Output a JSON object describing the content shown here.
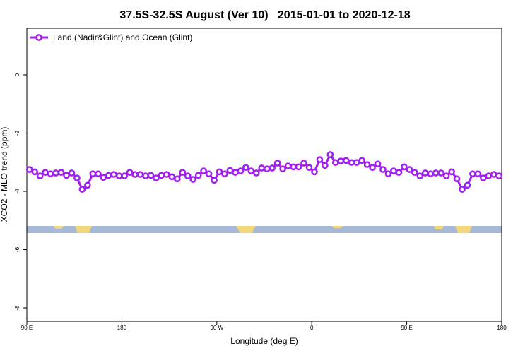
{
  "chart_data": {
    "type": "line",
    "title": "37.5S-32.5S August (Ver 10)   2015-01-01 to 2020-12-18",
    "x_label": "Longitude (deg E)",
    "y_label": "XCO2 - MLO trend (ppm)",
    "xlim": [
      90,
      540
    ],
    "ylim": [
      -8.46,
      1.6
    ],
    "xticks": [
      {
        "value": 90,
        "label": "90 E"
      },
      180,
      {
        "value": 270,
        "label": "90 W"
      },
      {
        "value": 360,
        "label": "0"
      },
      {
        "value": 450,
        "label": "90 E"
      },
      {
        "value": 540,
        "label": "180"
      }
    ],
    "yticks": [
      0,
      -2,
      -4,
      -6,
      -8
    ],
    "legend": "top-left",
    "x": [
      92.5,
      97.5,
      102.5,
      107.5,
      112.5,
      117.5,
      122.5,
      127.5,
      132.5,
      137.5,
      142.5,
      147.5,
      152.5,
      157.5,
      162.5,
      167.5,
      172.5,
      177.5,
      182.5,
      187.5,
      192.5,
      197.5,
      202.5,
      207.5,
      212.5,
      217.5,
      222.5,
      227.5,
      232.5,
      237.5,
      242.5,
      247.5,
      252.5,
      257.5,
      262.5,
      267.5,
      272.5,
      277.5,
      282.5,
      287.5,
      292.5,
      297.5,
      302.5,
      307.5,
      312.5,
      317.5,
      322.5,
      327.5,
      332.5,
      337.5,
      342.5,
      347.5,
      352.5,
      357.5,
      362.5,
      367.5,
      372.5,
      377.5,
      382.5,
      387.5,
      392.5,
      397.5,
      402.5,
      407.5,
      412.5,
      417.5,
      422.5,
      427.5,
      432.5,
      437.5,
      442.5,
      447.5,
      452.5,
      457.5,
      462.5,
      467.5,
      472.5,
      477.5,
      482.5,
      487.5,
      492.5,
      497.5,
      502.5,
      507.5,
      512.5,
      517.5,
      522.5,
      527.5,
      532.5,
      537.5
    ],
    "series": [
      {
        "name": "Land (Nadir&Glint) and Ocean (Glint)",
        "color": "#a020f0",
        "values": [
          -3.25,
          -3.33,
          -3.47,
          -3.35,
          -3.4,
          -3.37,
          -3.35,
          -3.45,
          -3.37,
          -3.54,
          -3.93,
          -3.79,
          -3.4,
          -3.4,
          -3.52,
          -3.45,
          -3.42,
          -3.47,
          -3.47,
          -3.35,
          -3.42,
          -3.42,
          -3.47,
          -3.45,
          -3.54,
          -3.45,
          -3.42,
          -3.5,
          -3.57,
          -3.35,
          -3.47,
          -3.59,
          -3.45,
          -3.3,
          -3.4,
          -3.62,
          -3.33,
          -3.4,
          -3.28,
          -3.35,
          -3.3,
          -3.18,
          -3.3,
          -3.37,
          -3.2,
          -3.23,
          -3.2,
          -3.03,
          -3.23,
          -3.13,
          -3.16,
          -3.16,
          -3.03,
          -3.18,
          -3.33,
          -2.91,
          -3.11,
          -2.74,
          -3.01,
          -2.96,
          -2.94,
          -3.01,
          -3.01,
          -2.94,
          -3.08,
          -3.18,
          -3.06,
          -3.25,
          -3.4,
          -3.3,
          -3.35,
          -3.16,
          -3.25,
          -3.35,
          -3.47,
          -3.37,
          -3.4,
          -3.37,
          -3.37,
          -3.47,
          -3.33,
          -3.57,
          -3.93,
          -3.79,
          -3.4,
          -3.4,
          -3.54,
          -3.47,
          -3.42,
          -3.47
        ]
      }
    ]
  }
}
